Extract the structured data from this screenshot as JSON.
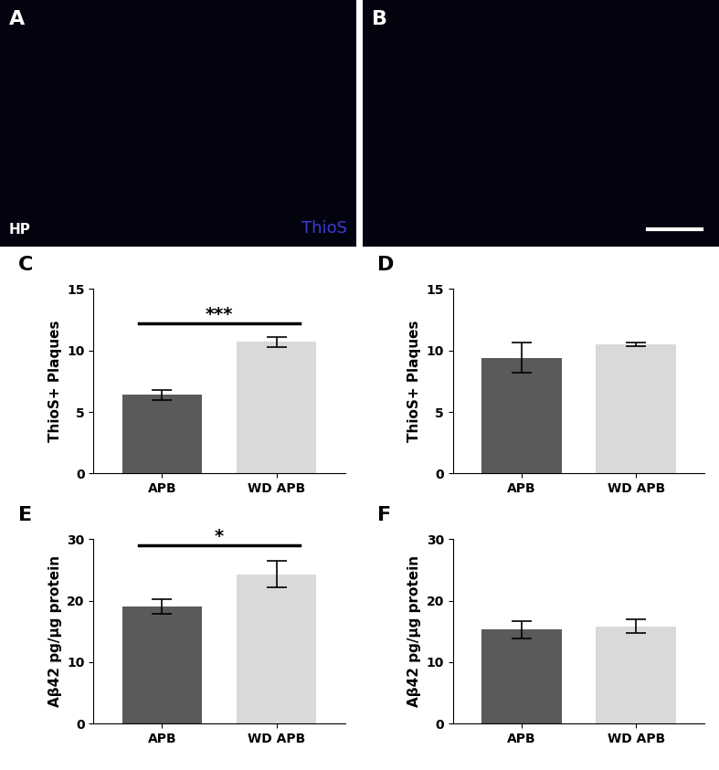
{
  "images": [
    {
      "label": "A",
      "texts": [
        "HP",
        "ThioS"
      ]
    },
    {
      "label": "B"
    }
  ],
  "chart_data": [
    {
      "type": "bar",
      "title": "C",
      "categories": [
        "APB",
        "WD APB"
      ],
      "values": [
        6.4,
        10.7
      ],
      "errors": [
        0.4,
        0.4
      ],
      "colors": [
        "#5a5a5a",
        "#d9d9d9"
      ],
      "ylabel": "ThioS+ Plaques",
      "ylim": [
        0,
        15
      ],
      "yticks": [
        0,
        5,
        10,
        15
      ],
      "annotations": [
        "***"
      ]
    },
    {
      "type": "bar",
      "title": "D",
      "categories": [
        "APB",
        "WD APB"
      ],
      "values": [
        9.4,
        10.5
      ],
      "errors": [
        1.2,
        0.15
      ],
      "colors": [
        "#5a5a5a",
        "#d9d9d9"
      ],
      "ylabel": "ThioS+ Plaques",
      "ylim": [
        0,
        15
      ],
      "yticks": [
        0,
        5,
        10,
        15
      ]
    },
    {
      "type": "bar",
      "title": "E",
      "categories": [
        "APB",
        "WD APB"
      ],
      "values": [
        19.1,
        24.3
      ],
      "errors": [
        1.2,
        2.1
      ],
      "colors": [
        "#5a5a5a",
        "#d9d9d9"
      ],
      "ylabel": "Aβ42 pg/μg protein",
      "ylim": [
        0,
        30
      ],
      "yticks": [
        0,
        10,
        20,
        30
      ],
      "annotations": [
        "*"
      ]
    },
    {
      "type": "bar",
      "title": "F",
      "categories": [
        "APB",
        "WD APB"
      ],
      "values": [
        15.3,
        15.8
      ],
      "errors": [
        1.4,
        1.1
      ],
      "colors": [
        "#5a5a5a",
        "#d9d9d9"
      ],
      "ylabel": "Aβ42 pg/μg protein",
      "ylim": [
        0,
        30
      ],
      "yticks": [
        0,
        10,
        20,
        30
      ]
    }
  ]
}
